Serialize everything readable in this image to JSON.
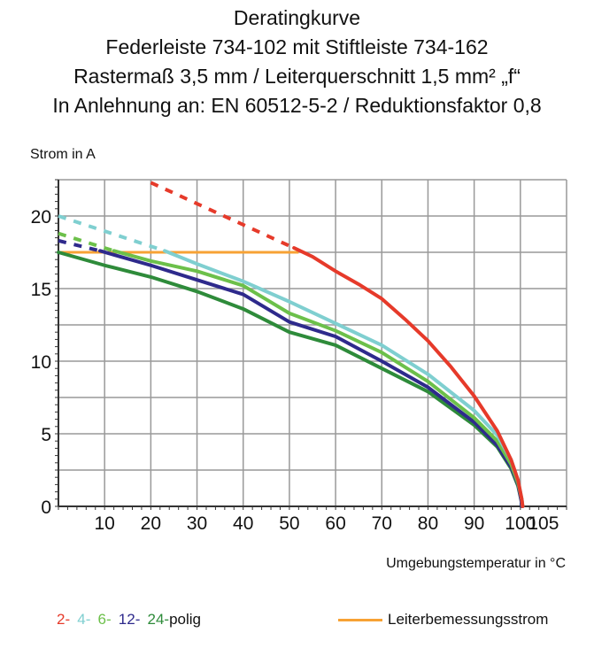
{
  "chart_data": {
    "type": "line",
    "title": [
      "Deratingkurve",
      "Federleiste 734-102 mit Stiftleiste 734-162",
      "Rastermaß 3,5 mm / Leiterquerschnitt 1,5 mm² „f“",
      "In Anlehnung an: EN 60512-5-2 / Reduktionsfaktor 0,8"
    ],
    "ylabel": "Strom in A",
    "xlabel": "Umgebungstemperatur in °C",
    "xlim": [
      0,
      110
    ],
    "ylim": [
      0,
      22.5
    ],
    "xticks": [
      10,
      20,
      30,
      40,
      50,
      60,
      70,
      80,
      90,
      100,
      105
    ],
    "yticks": [
      0,
      5,
      10,
      15,
      20
    ],
    "grid": true,
    "series": [
      {
        "label": "2-",
        "color": "#e63a2a",
        "dashed": [
          [
            20,
            22.3
          ],
          [
            51,
            17.8
          ]
        ],
        "solid": [
          [
            51,
            17.8
          ],
          [
            55,
            17.2
          ],
          [
            60,
            16.2
          ],
          [
            65,
            15.3
          ],
          [
            70,
            14.3
          ],
          [
            75,
            12.9
          ],
          [
            80,
            11.4
          ],
          [
            85,
            9.6
          ],
          [
            90,
            7.6
          ],
          [
            95,
            5.2
          ],
          [
            98,
            3.2
          ],
          [
            99.5,
            1.8
          ],
          [
            100.3,
            0.5
          ],
          [
            100.5,
            0
          ]
        ]
      },
      {
        "label": "4-",
        "color": "#7fcfd0",
        "dashed": [
          [
            0,
            20.0
          ],
          [
            23,
            17.6
          ]
        ],
        "solid": [
          [
            23,
            17.6
          ],
          [
            30,
            16.7
          ],
          [
            40,
            15.5
          ],
          [
            50,
            14.1
          ],
          [
            60,
            12.6
          ],
          [
            70,
            11.1
          ],
          [
            80,
            9.1
          ],
          [
            90,
            6.6
          ],
          [
            95,
            4.9
          ],
          [
            98,
            3.2
          ],
          [
            99.5,
            1.8
          ],
          [
            100.3,
            0.5
          ],
          [
            100.5,
            0
          ]
        ]
      },
      {
        "label": "6-",
        "color": "#6cc04a",
        "dashed": [
          [
            0,
            18.8
          ],
          [
            12,
            17.6
          ]
        ],
        "solid": [
          [
            12,
            17.6
          ],
          [
            20,
            16.9
          ],
          [
            30,
            16.2
          ],
          [
            40,
            15.2
          ],
          [
            50,
            13.3
          ],
          [
            60,
            12.1
          ],
          [
            70,
            10.6
          ],
          [
            80,
            8.6
          ],
          [
            90,
            6.1
          ],
          [
            95,
            4.5
          ],
          [
            98,
            2.9
          ],
          [
            99.5,
            1.6
          ],
          [
            100.3,
            0.5
          ],
          [
            100.5,
            0
          ]
        ]
      },
      {
        "label": "12-",
        "color": "#2e2a8c",
        "dashed": [
          [
            0,
            18.3
          ],
          [
            9,
            17.6
          ]
        ],
        "solid": [
          [
            9,
            17.6
          ],
          [
            20,
            16.6
          ],
          [
            30,
            15.6
          ],
          [
            40,
            14.6
          ],
          [
            50,
            12.7
          ],
          [
            60,
            11.7
          ],
          [
            70,
            10.0
          ],
          [
            80,
            8.2
          ],
          [
            90,
            5.8
          ],
          [
            95,
            4.2
          ],
          [
            98,
            2.7
          ],
          [
            99.5,
            1.5
          ],
          [
            100.2,
            0.4
          ],
          [
            100.3,
            0
          ]
        ]
      },
      {
        "label": "24-",
        "color": "#2e8b3a",
        "dashed": [],
        "solid": [
          [
            0,
            17.5
          ],
          [
            10,
            16.6
          ],
          [
            20,
            15.8
          ],
          [
            30,
            14.8
          ],
          [
            40,
            13.6
          ],
          [
            50,
            12.0
          ],
          [
            60,
            11.1
          ],
          [
            70,
            9.5
          ],
          [
            80,
            7.9
          ],
          [
            90,
            5.6
          ],
          [
            95,
            4.1
          ],
          [
            98,
            2.6
          ],
          [
            99.5,
            1.4
          ],
          [
            100.2,
            0.4
          ],
          [
            100.3,
            0
          ]
        ]
      }
    ],
    "reference_line": {
      "label": "Leiterbemessungsstrom",
      "color": "#f7a234",
      "y": 17.5,
      "x": [
        0,
        52
      ]
    },
    "legend": {
      "series_suffix": "polig",
      "placement": "bottom"
    }
  }
}
